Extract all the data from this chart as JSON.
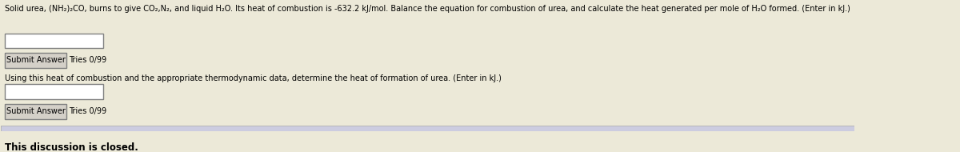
{
  "bg_color": "#d4d0c8",
  "content_bg": "#ece9d8",
  "white": "#ffffff",
  "border_color": "#808080",
  "text_color": "#000000",
  "line1": "Solid urea, (NH₂)₂CO, burns to give CO₂,N₂, and liquid H₂O. Its heat of combustion is -632.2 kJ/mol. Balance the equation for combustion of urea, and calculate the heat generated per mole of H₂O formed. (Enter in kJ.)",
  "line2": "Using this heat of combustion and the appropriate thermodynamic data, determine the heat of formation of urea. (Enter in kJ.)",
  "button_text": "Submit Answer",
  "tries_text": "Tries 0/99",
  "closed_text": "This discussion is closed.",
  "closed_bg": "#cccce0",
  "closed_border": "#aaaaaa",
  "figsize": [
    12.0,
    1.9
  ],
  "dpi": 100
}
